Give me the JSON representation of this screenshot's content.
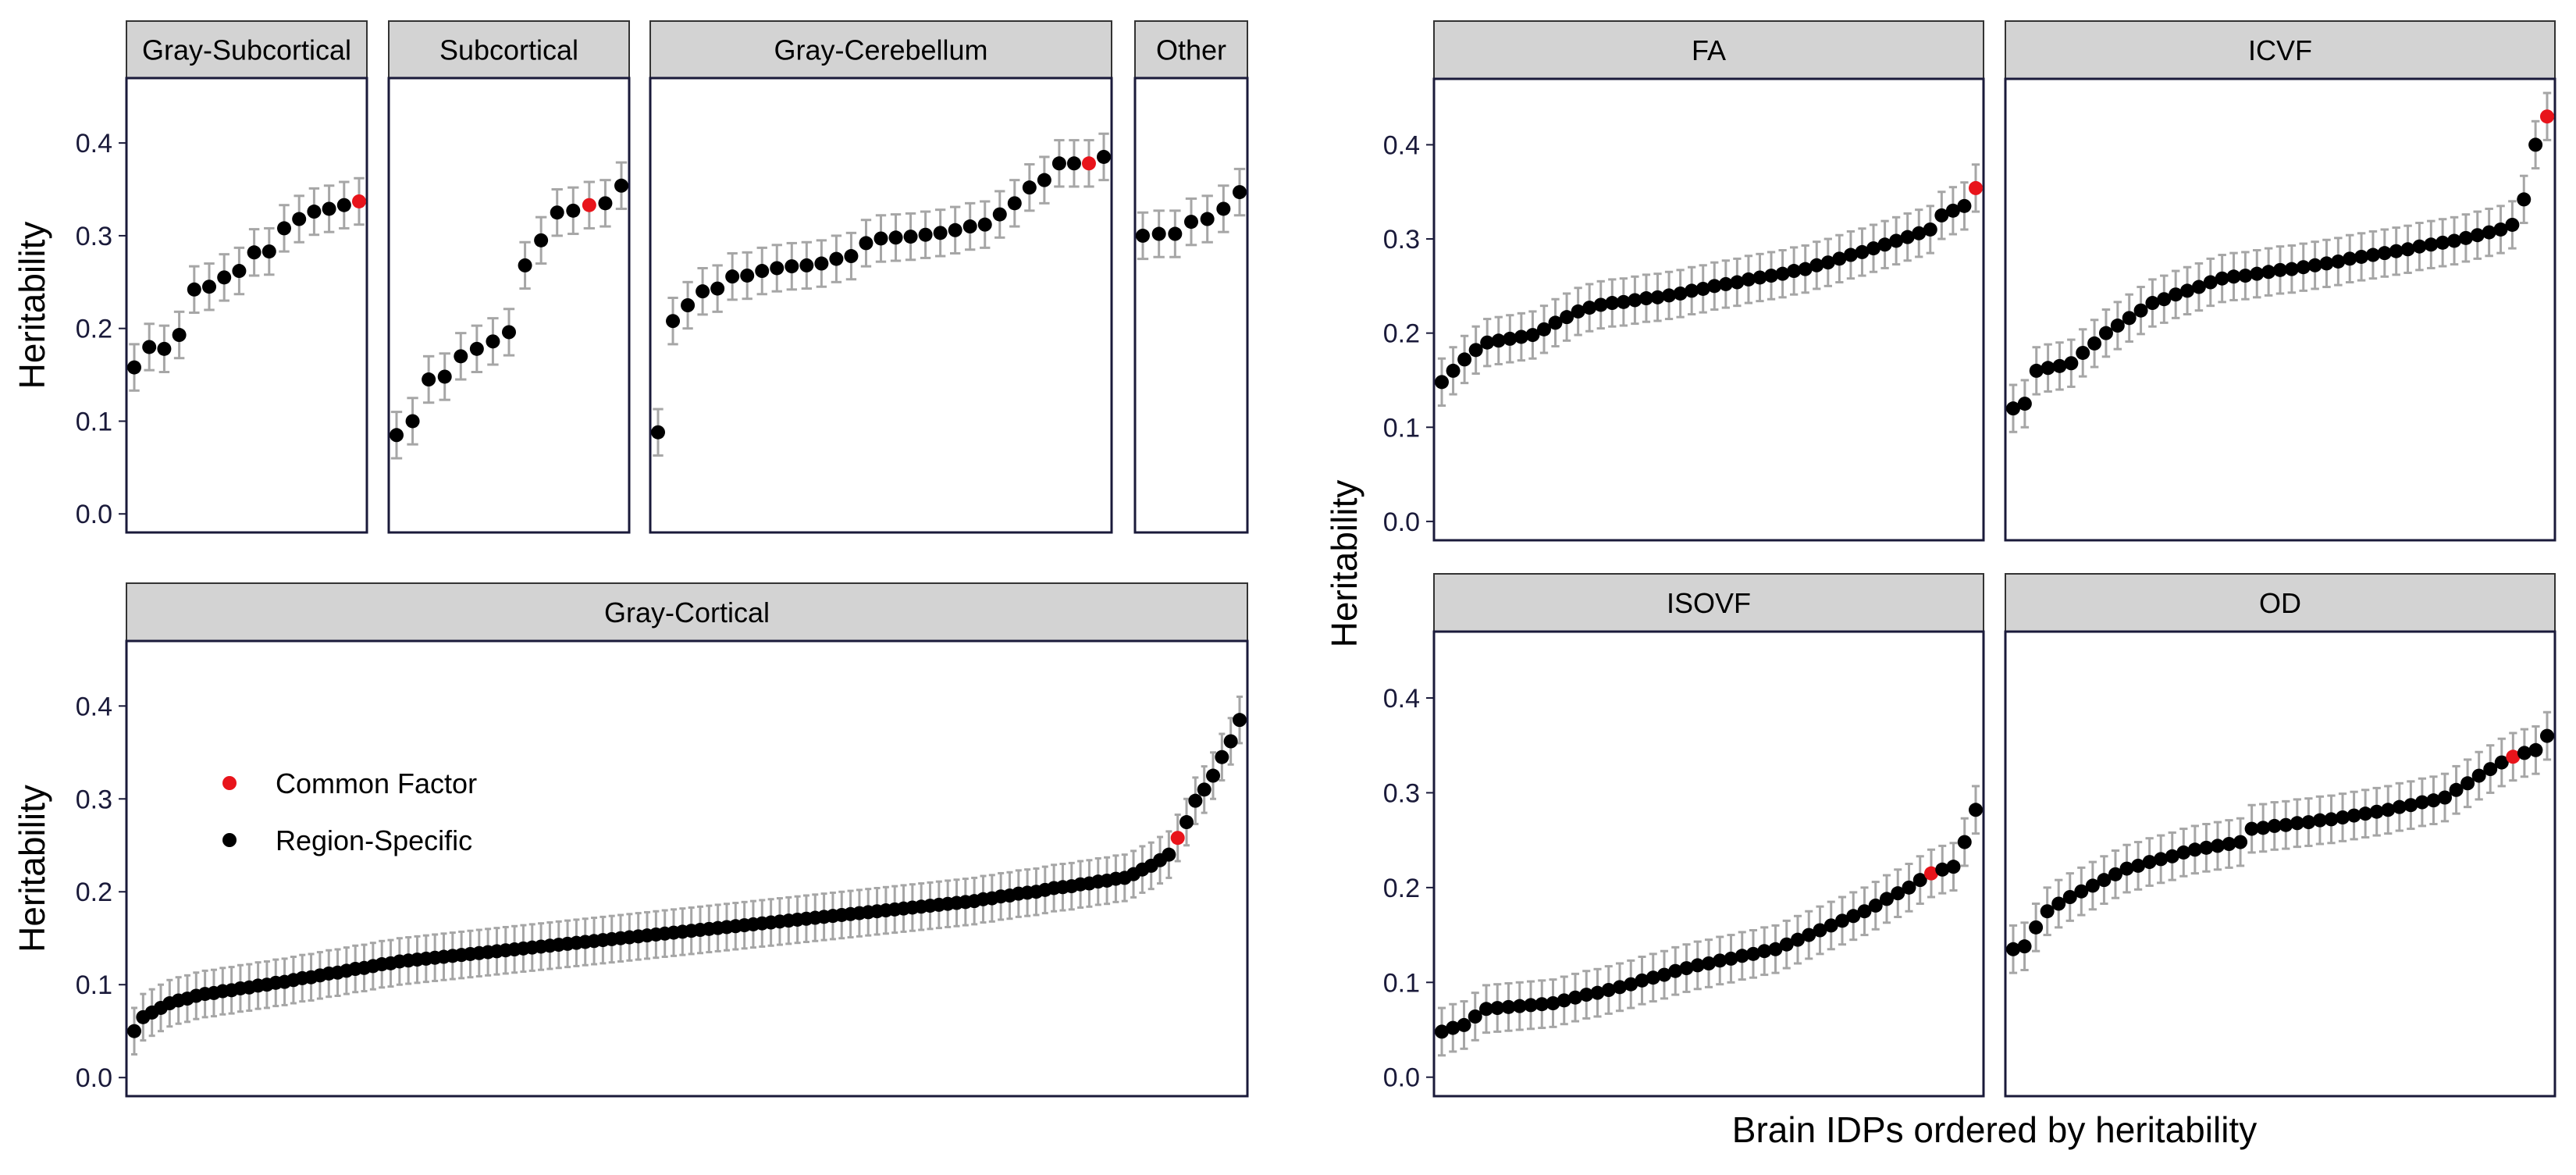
{
  "colors": {
    "common_factor": "#e8141b",
    "region_specific": "#000000",
    "error_bar": "#a6a6a6",
    "strip_fill": "#d3d3d3",
    "panel_border": "#1a1a3a",
    "tick_text": "#1a1a3a"
  },
  "legend": {
    "common_factor": "Common Factor",
    "region_specific": "Region-Specific"
  },
  "labels": {
    "y_axis": "Heritability",
    "x_axis": "Brain IDPs ordered by heritability"
  },
  "chart_data": [
    {
      "type": "scatter",
      "title": "Gray-Subcortical",
      "ylabel": "Heritability",
      "ylim": [
        -0.02,
        0.47
      ],
      "yticks": [
        0.0,
        0.1,
        0.2,
        0.3,
        0.4
      ],
      "error_half_width": 0.025,
      "common_factor_index": 15,
      "values": [
        0.158,
        0.18,
        0.178,
        0.193,
        0.242,
        0.245,
        0.255,
        0.262,
        0.282,
        0.283,
        0.308,
        0.318,
        0.326,
        0.329,
        0.333,
        0.337
      ]
    },
    {
      "type": "scatter",
      "title": "Subcortical",
      "ylim": [
        -0.02,
        0.47
      ],
      "yticks": [
        0.0,
        0.1,
        0.2,
        0.3,
        0.4
      ],
      "error_half_width": 0.025,
      "common_factor_index": 12,
      "values": [
        0.085,
        0.1,
        0.145,
        0.148,
        0.17,
        0.178,
        0.186,
        0.196,
        0.268,
        0.295,
        0.325,
        0.327,
        0.333,
        0.335,
        0.354
      ]
    },
    {
      "type": "scatter",
      "title": "Gray-Cerebellum",
      "ylim": [
        -0.02,
        0.47
      ],
      "yticks": [
        0.0,
        0.1,
        0.2,
        0.3,
        0.4
      ],
      "error_half_width": 0.025,
      "common_factor_index": 29,
      "values": [
        0.088,
        0.208,
        0.225,
        0.24,
        0.243,
        0.256,
        0.257,
        0.262,
        0.265,
        0.267,
        0.268,
        0.27,
        0.275,
        0.278,
        0.292,
        0.297,
        0.298,
        0.299,
        0.301,
        0.303,
        0.306,
        0.31,
        0.312,
        0.323,
        0.335,
        0.352,
        0.36,
        0.378,
        0.378,
        0.378,
        0.385
      ]
    },
    {
      "type": "scatter",
      "title": "Other",
      "ylim": [
        -0.02,
        0.47
      ],
      "yticks": [
        0.0,
        0.1,
        0.2,
        0.3,
        0.4
      ],
      "error_half_width": 0.025,
      "common_factor_index": -1,
      "values": [
        0.3,
        0.302,
        0.302,
        0.315,
        0.318,
        0.329,
        0.347
      ]
    },
    {
      "type": "scatter",
      "title": "Gray-Cortical",
      "ylabel": "Heritability",
      "ylim": [
        -0.02,
        0.47
      ],
      "yticks": [
        0.0,
        0.1,
        0.2,
        0.3,
        0.4
      ],
      "error_half_width": 0.025,
      "common_factor_index": 118,
      "n": 126,
      "anchors": [
        [
          0,
          0.05
        ],
        [
          1,
          0.065
        ],
        [
          4,
          0.08
        ],
        [
          8,
          0.09
        ],
        [
          15,
          0.1
        ],
        [
          30,
          0.125
        ],
        [
          50,
          0.145
        ],
        [
          70,
          0.165
        ],
        [
          80,
          0.175
        ],
        [
          95,
          0.19
        ],
        [
          105,
          0.205
        ],
        [
          112,
          0.215
        ],
        [
          115,
          0.228
        ],
        [
          117,
          0.24
        ],
        [
          118,
          0.258
        ],
        [
          119,
          0.275
        ],
        [
          120,
          0.298
        ],
        [
          121,
          0.31
        ],
        [
          122,
          0.325
        ],
        [
          123,
          0.345
        ],
        [
          124,
          0.362
        ],
        [
          125,
          0.385
        ]
      ]
    },
    {
      "type": "scatter",
      "title": "FA",
      "ylim": [
        -0.02,
        0.47
      ],
      "yticks": [
        0.0,
        0.1,
        0.2,
        0.3,
        0.4
      ],
      "error_half_width": 0.025,
      "common_factor_index": 47,
      "n": 48,
      "anchors": [
        [
          0,
          0.148
        ],
        [
          1,
          0.16
        ],
        [
          2,
          0.172
        ],
        [
          3,
          0.182
        ],
        [
          4,
          0.19
        ],
        [
          8,
          0.198
        ],
        [
          12,
          0.223
        ],
        [
          14,
          0.23
        ],
        [
          20,
          0.24
        ],
        [
          25,
          0.252
        ],
        [
          32,
          0.268
        ],
        [
          38,
          0.29
        ],
        [
          43,
          0.31
        ],
        [
          44,
          0.325
        ],
        [
          46,
          0.335
        ],
        [
          47,
          0.354
        ]
      ]
    },
    {
      "type": "scatter",
      "title": "ICVF",
      "ylim": [
        -0.02,
        0.47
      ],
      "yticks": [
        0.0,
        0.1,
        0.2,
        0.3,
        0.4
      ],
      "error_half_width": 0.025,
      "common_factor_index": 46,
      "n": 47,
      "anchors": [
        [
          0,
          0.12
        ],
        [
          1,
          0.125
        ],
        [
          2,
          0.16
        ],
        [
          5,
          0.168
        ],
        [
          8,
          0.2
        ],
        [
          12,
          0.232
        ],
        [
          18,
          0.258
        ],
        [
          25,
          0.27
        ],
        [
          32,
          0.285
        ],
        [
          38,
          0.298
        ],
        [
          42,
          0.31
        ],
        [
          43,
          0.315
        ],
        [
          44,
          0.342
        ],
        [
          45,
          0.4
        ],
        [
          46,
          0.43
        ]
      ]
    },
    {
      "type": "scatter",
      "title": "ISOVF",
      "ylim": [
        -0.02,
        0.47
      ],
      "yticks": [
        0.0,
        0.1,
        0.2,
        0.3,
        0.4
      ],
      "error_half_width": 0.025,
      "common_factor_index": 44,
      "n": 49,
      "anchors": [
        [
          0,
          0.048
        ],
        [
          2,
          0.055
        ],
        [
          4,
          0.072
        ],
        [
          10,
          0.078
        ],
        [
          16,
          0.095
        ],
        [
          22,
          0.115
        ],
        [
          30,
          0.135
        ],
        [
          34,
          0.155
        ],
        [
          38,
          0.175
        ],
        [
          42,
          0.2
        ],
        [
          44,
          0.215
        ],
        [
          46,
          0.222
        ],
        [
          47,
          0.248
        ],
        [
          48,
          0.282
        ]
      ]
    },
    {
      "type": "scatter",
      "title": "OD",
      "ylim": [
        -0.02,
        0.47
      ],
      "yticks": [
        0.0,
        0.1,
        0.2,
        0.3,
        0.4
      ],
      "error_half_width": 0.025,
      "common_factor_index": 44,
      "n": 48,
      "anchors": [
        [
          0,
          0.135
        ],
        [
          1,
          0.138
        ],
        [
          2,
          0.158
        ],
        [
          3,
          0.175
        ],
        [
          5,
          0.19
        ],
        [
          10,
          0.22
        ],
        [
          16,
          0.24
        ],
        [
          20,
          0.248
        ],
        [
          21,
          0.262
        ],
        [
          28,
          0.272
        ],
        [
          33,
          0.282
        ],
        [
          38,
          0.295
        ],
        [
          42,
          0.325
        ],
        [
          44,
          0.338
        ],
        [
          46,
          0.345
        ],
        [
          47,
          0.36
        ]
      ]
    }
  ]
}
